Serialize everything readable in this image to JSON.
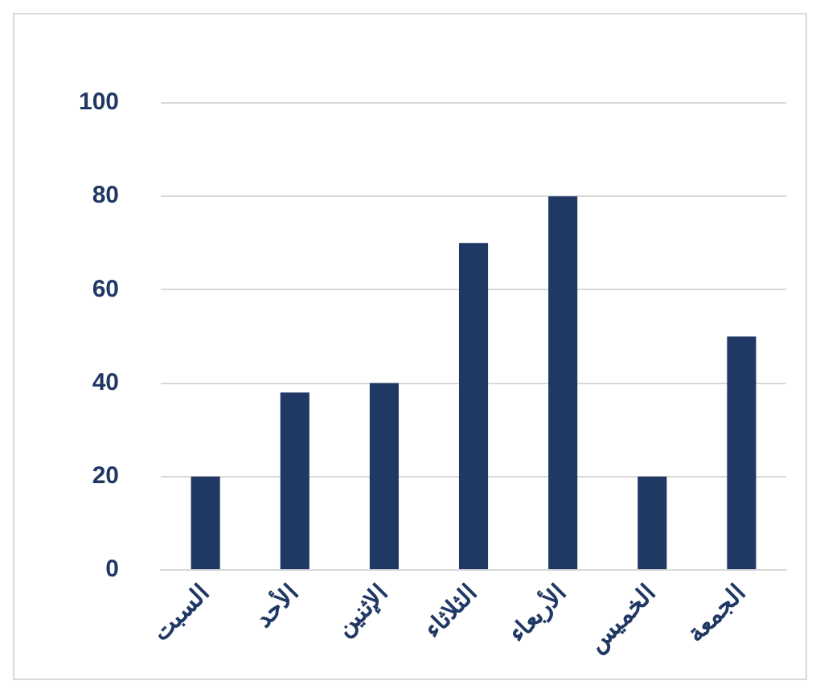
{
  "chart_data": {
    "type": "bar",
    "categories": [
      "السبت",
      "الأحد",
      "الإثنين",
      "الثلاثاء",
      "الأربعاء",
      "الخميس",
      "الجمعة"
    ],
    "values": [
      20,
      38,
      40,
      70,
      80,
      20,
      50
    ],
    "color": "#203864",
    "ylim": [
      0,
      100
    ],
    "yticks": [
      0,
      20,
      40,
      60,
      80,
      100
    ],
    "grid": "y",
    "legend": false
  }
}
